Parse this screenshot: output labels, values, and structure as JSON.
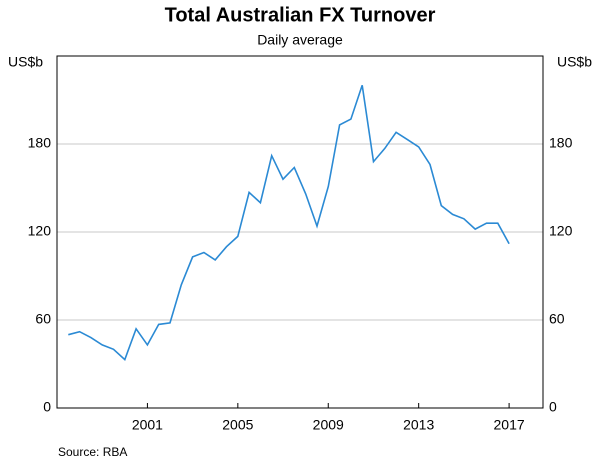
{
  "chart_data": {
    "type": "line",
    "title": "Total Australian FX Turnover",
    "subtitle": "Daily average",
    "y_label": "US$b",
    "y2_label": "US$b",
    "source": "Source:   RBA",
    "x": [
      1997.5,
      1998,
      1998.5,
      1999,
      1999.5,
      2000,
      2000.5,
      2001,
      2001.5,
      2002,
      2002.5,
      2003,
      2003.5,
      2004,
      2004.5,
      2005,
      2005.5,
      2006,
      2006.5,
      2007,
      2007.5,
      2008,
      2008.5,
      2009,
      2009.5,
      2010,
      2010.5,
      2011,
      2011.5,
      2012,
      2012.5,
      2013,
      2013.5,
      2014,
      2014.5,
      2015,
      2015.5,
      2016,
      2016.5,
      2017
    ],
    "series": [
      {
        "name": "Total",
        "color": "#2b8ad4",
        "values": [
          50,
          52,
          48,
          43,
          40,
          33,
          54,
          43,
          57,
          58,
          84,
          103,
          106,
          101,
          110,
          117,
          147,
          140,
          172,
          156,
          164,
          146,
          124,
          151,
          193,
          197,
          220,
          168,
          177,
          188,
          183,
          178,
          166,
          138,
          132,
          129,
          122,
          126,
          126,
          112
        ]
      }
    ],
    "xlim": [
      1997,
      2018.5
    ],
    "xticks": [
      2001,
      2005,
      2009,
      2013,
      2017
    ],
    "ylim": [
      0,
      240
    ],
    "yticks": [
      0,
      60,
      120,
      180
    ],
    "y2lim": [
      0,
      240
    ],
    "y2ticks": [
      0,
      60,
      120,
      180
    ],
    "grid": true
  }
}
